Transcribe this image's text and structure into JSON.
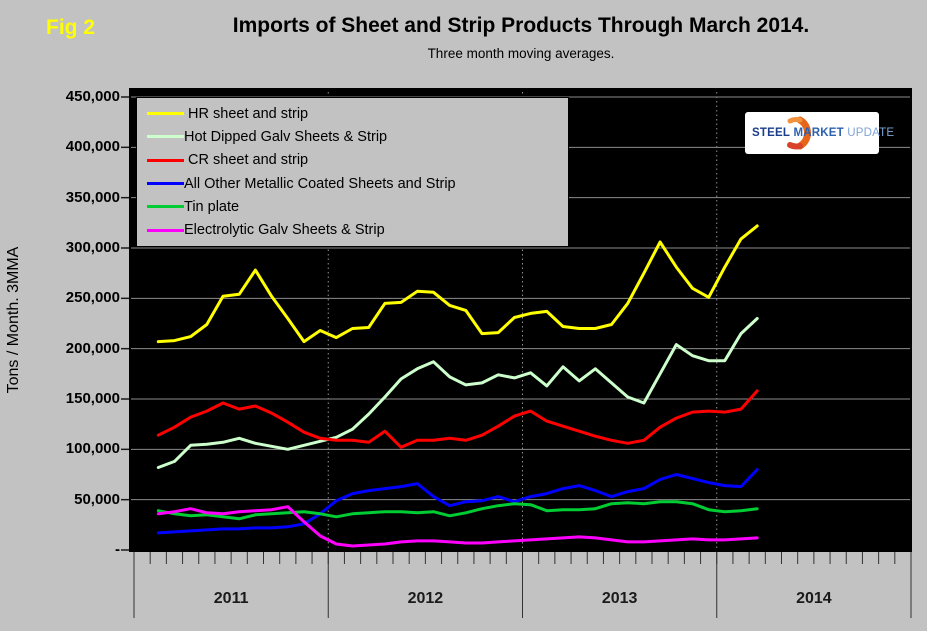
{
  "header": {
    "fig_label": "Fig 2",
    "title": "Imports of Sheet and Strip Products Through March 2014.",
    "subtitle": "Three month moving averages."
  },
  "y_axis": {
    "title": "Tons / Month. 3MMA"
  },
  "logo": {
    "word1": "STEEL",
    "word2": "MARKET",
    "word3": "UPDATE"
  },
  "chart_data": {
    "type": "line",
    "title": "Imports of Sheet and Strip Products Through March 2014.",
    "subtitle": "Three month moving averages.",
    "ylabel": "Tons / Month. 3MMA",
    "ylim": [
      0,
      450000
    ],
    "y_max": 450000,
    "grid": "horizontal-solid, year-boundaries-dotted",
    "legend_position": "top-left-inside",
    "plot_background": "#000000",
    "page_background": "#C2C2C2",
    "y_ticks": [
      {
        "value": 450000,
        "label": "450,000"
      },
      {
        "value": 400000,
        "label": "400,000"
      },
      {
        "value": 350000,
        "label": "350,000"
      },
      {
        "value": 300000,
        "label": "300,000"
      },
      {
        "value": 250000,
        "label": "250,000"
      },
      {
        "value": 200000,
        "label": "200,000"
      },
      {
        "value": 150000,
        "label": "150,000"
      },
      {
        "value": 100000,
        "label": "100,000"
      },
      {
        "value": 50000,
        "label": "50,000"
      },
      {
        "value": 0,
        "label": "-"
      }
    ],
    "x_years": [
      "2011",
      "2012",
      "2013",
      "2014"
    ],
    "x_total_months": 48,
    "x_start_offset": 1,
    "months": [
      "2011-02",
      "2011-03",
      "2011-04",
      "2011-05",
      "2011-06",
      "2011-07",
      "2011-08",
      "2011-09",
      "2011-10",
      "2011-11",
      "2011-12",
      "2012-01",
      "2012-02",
      "2012-03",
      "2012-04",
      "2012-05",
      "2012-06",
      "2012-07",
      "2012-08",
      "2012-09",
      "2012-10",
      "2012-11",
      "2012-12",
      "2013-01",
      "2013-02",
      "2013-03",
      "2013-04",
      "2013-05",
      "2013-06",
      "2013-07",
      "2013-08",
      "2013-09",
      "2013-10",
      "2013-11",
      "2013-12",
      "2014-01",
      "2014-02",
      "2014-03"
    ],
    "series": [
      {
        "name": " HR sheet and strip",
        "color": "#FFFF00",
        "values": [
          207000,
          208000,
          212000,
          224000,
          252000,
          254000,
          278000,
          252000,
          230000,
          207000,
          218000,
          211000,
          220000,
          221000,
          245000,
          246000,
          257000,
          256000,
          243000,
          238000,
          215000,
          216000,
          231000,
          235000,
          237000,
          222000,
          220000,
          220000,
          224000,
          245000,
          275000,
          306000,
          281000,
          260000,
          251000,
          281000,
          309000,
          322000
        ]
      },
      {
        "name": "Hot Dipped Galv Sheets & Strip",
        "color": "#CCFFCC",
        "values": [
          82000,
          88000,
          104000,
          105000,
          107000,
          111000,
          106000,
          103000,
          100000,
          104000,
          108000,
          112000,
          120000,
          135000,
          152000,
          170000,
          180000,
          187000,
          172000,
          164000,
          166000,
          174000,
          171000,
          176000,
          163000,
          182000,
          168000,
          180000,
          166000,
          152000,
          146000,
          175000,
          204000,
          193000,
          188000,
          188000,
          215000,
          230000
        ]
      },
      {
        "name": " CR sheet and strip",
        "color": "#FF0000",
        "values": [
          114000,
          122000,
          132000,
          138000,
          146000,
          140000,
          143000,
          136000,
          127000,
          117000,
          111000,
          109000,
          109000,
          107000,
          118000,
          102000,
          109000,
          109000,
          111000,
          109000,
          114000,
          123000,
          133000,
          138000,
          128000,
          123000,
          118000,
          113000,
          109000,
          106000,
          109000,
          122000,
          131000,
          137000,
          138000,
          137000,
          140000,
          158000
        ]
      },
      {
        "name": "All Other Metallic Coated Sheets and Strip",
        "color": "#0000FF",
        "values": [
          17000,
          18000,
          19000,
          20000,
          21000,
          21000,
          22000,
          22000,
          23000,
          26000,
          36000,
          49000,
          56000,
          59000,
          61000,
          63000,
          66000,
          53000,
          44000,
          48000,
          49000,
          53000,
          48000,
          53000,
          56000,
          61000,
          64000,
          59000,
          53000,
          58000,
          61000,
          70000,
          75000,
          71000,
          67000,
          64000,
          63000,
          80000
        ]
      },
      {
        "name": "Tin plate",
        "color": "#00CC33",
        "values": [
          39000,
          36000,
          34000,
          35000,
          33000,
          31000,
          35000,
          36000,
          37000,
          38000,
          36000,
          33000,
          36000,
          37000,
          38000,
          38000,
          37000,
          38000,
          34000,
          37000,
          41000,
          44000,
          46000,
          45000,
          39000,
          40000,
          40000,
          41000,
          46000,
          47000,
          46000,
          48000,
          48000,
          46000,
          40000,
          38000,
          39000,
          41000
        ]
      },
      {
        "name": "Electrolytic Galv Sheets & Strip",
        "color": "#FF00FF",
        "values": [
          36000,
          38000,
          41000,
          37000,
          36000,
          38000,
          39000,
          40000,
          43000,
          28000,
          14000,
          6000,
          4000,
          5000,
          6000,
          8000,
          9000,
          9000,
          8000,
          7000,
          7000,
          8000,
          9000,
          10000,
          11000,
          12000,
          13000,
          12000,
          10000,
          8000,
          8000,
          9000,
          10000,
          11000,
          10000,
          10000,
          11000,
          12000
        ]
      }
    ]
  }
}
